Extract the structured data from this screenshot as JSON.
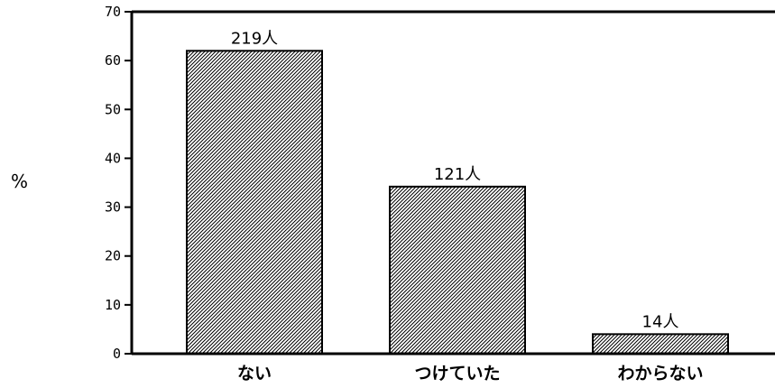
{
  "chart_data": {
    "type": "bar",
    "title": "",
    "xlabel": "",
    "ylabel": "%",
    "ylim": [
      0,
      70
    ],
    "yticks": [
      0,
      10,
      20,
      30,
      40,
      50,
      60,
      70
    ],
    "ytick_labels": [
      "0",
      "10",
      "20",
      "30",
      "40",
      "50",
      "60",
      "70"
    ],
    "categories": [
      "ない",
      "つけていた",
      "わからない"
    ],
    "values": [
      62,
      34.2,
      4
    ],
    "data_labels": [
      "219人",
      "121人",
      "14人"
    ],
    "grid": false,
    "legend": "none",
    "bar_fill": "hatched",
    "colors": {
      "bar_border": "#000000",
      "hatch": "#000000",
      "background": "#ffffff"
    }
  }
}
